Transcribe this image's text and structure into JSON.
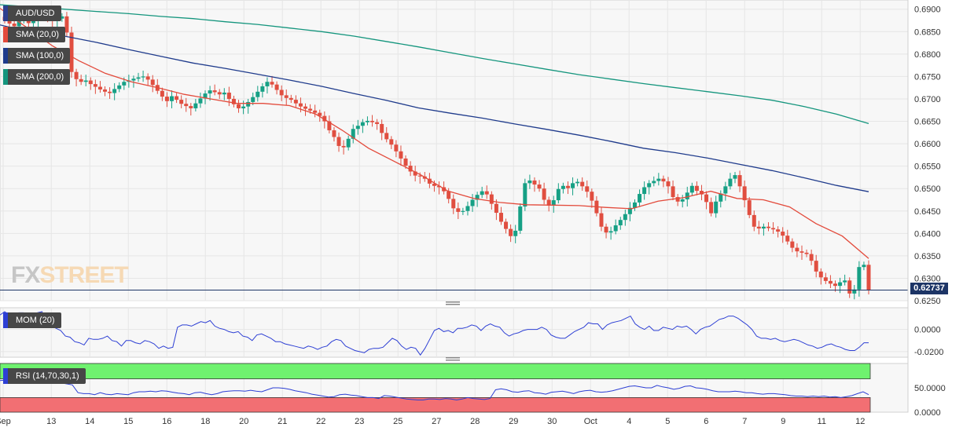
{
  "chart_data": [
    {
      "type": "candlestick",
      "title": "AUD/USD",
      "y_ticks": [
        "0.6900",
        "0.6850",
        "0.6800",
        "0.6750",
        "0.6700",
        "0.6650",
        "0.6600",
        "0.6550",
        "0.6500",
        "0.6450",
        "0.6400",
        "0.6350",
        "0.6300",
        "0.6250"
      ],
      "ylim": [
        0.625,
        0.691
      ],
      "last_price": "0.62737",
      "x_ticks": [
        "Sep",
        "13",
        "14",
        "15",
        "16",
        "18",
        "20",
        "21",
        "22",
        "23",
        "25",
        "27",
        "28",
        "29",
        "30",
        "Oct",
        "4",
        "5",
        "6",
        "7",
        "9",
        "11",
        "12"
      ],
      "x_tick_days": [
        0,
        2.5,
        4.5,
        6.5,
        8.5,
        10.5,
        12.5,
        14.5,
        16.5,
        18.5,
        20.5,
        22.5,
        24.5,
        26.5,
        28.5,
        30.5,
        32.5,
        34.5,
        36.5,
        38.5,
        40.5,
        42.5,
        44.5
      ],
      "candles_close": [
        0.6875,
        0.6868,
        0.6862,
        0.6875,
        0.688,
        0.6869,
        0.6877,
        0.6884,
        0.689,
        0.6881,
        0.6874,
        0.6879,
        0.6884,
        0.6848,
        0.676,
        0.6744,
        0.6738,
        0.6741,
        0.6733,
        0.6727,
        0.6721,
        0.6716,
        0.6713,
        0.6722,
        0.673,
        0.6738,
        0.6741,
        0.6745,
        0.6748,
        0.675,
        0.6743,
        0.6731,
        0.6718,
        0.6705,
        0.6695,
        0.6706,
        0.6698,
        0.6689,
        0.6684,
        0.6679,
        0.669,
        0.6701,
        0.6712,
        0.6719,
        0.6715,
        0.671,
        0.6714,
        0.67,
        0.6688,
        0.6679,
        0.6683,
        0.6693,
        0.6704,
        0.6716,
        0.6728,
        0.6738,
        0.6732,
        0.672,
        0.6708,
        0.6702,
        0.6698,
        0.669,
        0.6683,
        0.6678,
        0.6674,
        0.6669,
        0.6662,
        0.665,
        0.663,
        0.6615,
        0.6595,
        0.6592,
        0.6611,
        0.6633,
        0.664,
        0.6648,
        0.6651,
        0.6648,
        0.6644,
        0.6624,
        0.661,
        0.6598,
        0.6583,
        0.6567,
        0.6551,
        0.6538,
        0.6529,
        0.6527,
        0.6522,
        0.6511,
        0.6506,
        0.6503,
        0.6494,
        0.6477,
        0.6456,
        0.6448,
        0.645,
        0.6461,
        0.6475,
        0.6486,
        0.6494,
        0.6487,
        0.6466,
        0.6446,
        0.6426,
        0.641,
        0.6394,
        0.6406,
        0.646,
        0.6512,
        0.6518,
        0.6509,
        0.65,
        0.6475,
        0.6462,
        0.6474,
        0.6499,
        0.6506,
        0.6501,
        0.6512,
        0.6515,
        0.6505,
        0.6493,
        0.6473,
        0.6445,
        0.6415,
        0.6402,
        0.6405,
        0.6418,
        0.643,
        0.6443,
        0.6457,
        0.6469,
        0.6488,
        0.6503,
        0.6512,
        0.6517,
        0.6522,
        0.6516,
        0.6505,
        0.6481,
        0.6471,
        0.6476,
        0.6491,
        0.6506,
        0.6495,
        0.6487,
        0.647,
        0.6445,
        0.6471,
        0.6489,
        0.6505,
        0.6522,
        0.653,
        0.6505,
        0.6474,
        0.6441,
        0.6415,
        0.6411,
        0.6415,
        0.6412,
        0.6409,
        0.6404,
        0.6395,
        0.6382,
        0.6368,
        0.636,
        0.6357,
        0.6354,
        0.6339,
        0.6315,
        0.6302,
        0.6294,
        0.6288,
        0.6283,
        0.6291,
        0.6295,
        0.6266,
        0.6275,
        0.6325,
        0.633,
        0.6274
      ],
      "series": [
        {
          "name": "SMA (20,0)",
          "color": "#e34a3b",
          "values": [
            0.6902,
            0.686,
            0.6818,
            0.6785,
            0.6757,
            0.6738,
            0.6725,
            0.671,
            0.67,
            0.669,
            0.669,
            0.6685,
            0.6666,
            0.663,
            0.659,
            0.656,
            0.653,
            0.6495,
            0.6478,
            0.6469,
            0.6464,
            0.6463,
            0.6462,
            0.6458,
            0.6455,
            0.6472,
            0.648,
            0.6494,
            0.6478,
            0.6475,
            0.6459,
            0.6422,
            0.6394,
            0.6344
          ]
        },
        {
          "name": "SMA (100,0)",
          "color": "#1f3b8c",
          "values": [
            0.6865,
            0.6848,
            0.684,
            0.6826,
            0.681,
            0.6795,
            0.678,
            0.6768,
            0.6755,
            0.6742,
            0.6728,
            0.6712,
            0.6697,
            0.668,
            0.6668,
            0.6657,
            0.6644,
            0.6632,
            0.6619,
            0.6605,
            0.659,
            0.658,
            0.6568,
            0.6554,
            0.654,
            0.6524,
            0.6507,
            0.6493
          ]
        },
        {
          "name": "SMA (200,0)",
          "color": "#14957d",
          "values": [
            0.691,
            0.6905,
            0.69,
            0.6895,
            0.689,
            0.6884,
            0.6879,
            0.6872,
            0.6866,
            0.6858,
            0.685,
            0.684,
            0.6828,
            0.6816,
            0.6803,
            0.679,
            0.6778,
            0.6766,
            0.6754,
            0.6744,
            0.6734,
            0.6725,
            0.6716,
            0.6707,
            0.6697,
            0.6683,
            0.6666,
            0.6645
          ]
        }
      ]
    },
    {
      "type": "line",
      "title": "MOM (20)",
      "y_ticks": [
        "0.0000",
        "-0.0200"
      ],
      "ylim": [
        -0.025,
        0.0195
      ],
      "series": [
        {
          "name": "MOM (20)",
          "color": "#2d3fd4",
          "values": [
            0.013,
            0.016,
            0.013,
            0.012,
            0.015,
            0.015,
            0.014,
            0.014,
            0.015,
            0.016,
            0.004,
            0.003,
            0.001,
            -0.001,
            -0.006,
            -0.007,
            -0.011,
            -0.012,
            -0.014,
            -0.008,
            -0.009,
            -0.009,
            -0.008,
            -0.006,
            -0.01,
            -0.011,
            -0.015,
            -0.01,
            -0.01,
            -0.012,
            -0.013,
            -0.01,
            -0.011,
            -0.013,
            -0.017,
            -0.015,
            -0.017,
            -0.016,
            0.002,
            0.004,
            0.004,
            0.003,
            0.005,
            0.007,
            0.006,
            0.008,
            0.003,
            0.001,
            0.0,
            -0.002,
            -0.003,
            -0.002,
            -0.006,
            -0.007,
            -0.01,
            -0.005,
            -0.004,
            -0.006,
            -0.008,
            -0.011,
            -0.011,
            -0.013,
            -0.014,
            -0.015,
            -0.016,
            -0.017,
            -0.015,
            -0.016,
            -0.018,
            -0.016,
            -0.015,
            -0.011,
            -0.009,
            -0.01,
            -0.015,
            -0.017,
            -0.019,
            -0.02,
            -0.021,
            -0.018,
            -0.017,
            -0.017,
            -0.016,
            -0.012,
            -0.008,
            -0.01,
            -0.015,
            -0.018,
            -0.016,
            -0.017,
            -0.023,
            -0.017,
            -0.009,
            -0.001,
            0.001,
            -0.002,
            -0.001,
            -0.003,
            0.001,
            0.001,
            0.002,
            0.004,
            0.003,
            -0.001,
            0.003,
            0.005,
            0.003,
            0.002,
            -0.003,
            -0.006,
            -0.004,
            -0.003,
            -0.001,
            0.0,
            0.0,
            0.0,
            0.002,
            0.0,
            -0.005,
            -0.007,
            -0.008,
            -0.008,
            -0.005,
            -0.002,
            0.0,
            0.002,
            0.006,
            0.005,
            0.005,
            0.0,
            0.004,
            0.006,
            0.007,
            0.008,
            0.01,
            0.012,
            0.005,
            0.002,
            0.0,
            0.003,
            -0.001,
            -0.001,
            0.002,
            0.001,
            0.0,
            0.003,
            0.002,
            0.003,
            0.0,
            -0.004,
            0.0,
            0.002,
            0.003,
            0.006,
            0.009,
            0.01,
            0.012,
            0.012,
            0.01,
            0.007,
            0.004,
            0.0,
            -0.006,
            -0.008,
            -0.008,
            -0.009,
            -0.008,
            -0.01,
            -0.011,
            -0.01,
            -0.009,
            -0.01,
            -0.012,
            -0.014,
            -0.015,
            -0.017,
            -0.016,
            -0.014,
            -0.013,
            -0.015,
            -0.016,
            -0.018,
            -0.019,
            -0.019,
            -0.016,
            -0.012,
            -0.012
          ]
        }
      ]
    },
    {
      "type": "line",
      "title": "RSI (14,70,30,1)",
      "y_ticks": [
        "50.0000",
        "0.0000"
      ],
      "ylim": [
        0,
        100
      ],
      "overbought": 70,
      "oversold": 30,
      "zone_colors": {
        "upper": "#6ff26f",
        "lower": "#f26f73"
      },
      "series": [
        {
          "name": "RSI (14,70,30,1)",
          "color": "#2d3fd4",
          "values": [
            65,
            66,
            64,
            63,
            65,
            66,
            64,
            62,
            66,
            67,
            64,
            60,
            58,
            56,
            40,
            38,
            38,
            36,
            40,
            37,
            36,
            38,
            37,
            36,
            40,
            42,
            42,
            43,
            42,
            44,
            43,
            41,
            39,
            38,
            36,
            40,
            41,
            38,
            36,
            38,
            42,
            43,
            44,
            44,
            43,
            45,
            43,
            42,
            46,
            50,
            50,
            49,
            47,
            44,
            42,
            40,
            37,
            35,
            33,
            31,
            32,
            36,
            37,
            35,
            34,
            32,
            30,
            30,
            28,
            34,
            33,
            31,
            29,
            27,
            26,
            25,
            25,
            27,
            27,
            26,
            28,
            27,
            25,
            27,
            30,
            28,
            27,
            26,
            28,
            46,
            48,
            46,
            42,
            41,
            43,
            44,
            40,
            39,
            37,
            41,
            42,
            43,
            41,
            38,
            42,
            44,
            45,
            42,
            41,
            42,
            44,
            47,
            50,
            53,
            54,
            52,
            50,
            50,
            55,
            52,
            50,
            47,
            49,
            53,
            54,
            50,
            49,
            47,
            44,
            42,
            42,
            42,
            43,
            42,
            40,
            40,
            38,
            37,
            38,
            38,
            37,
            36,
            34,
            33,
            33,
            32,
            33,
            32,
            33,
            31,
            32,
            30,
            32,
            34,
            38,
            42,
            36
          ]
        }
      ]
    }
  ],
  "legend": {
    "pair": "AUD/USD",
    "sma20": "SMA (20,0)",
    "sma100": "SMA (100,0)",
    "sma200": "SMA (200,0)",
    "mom": "MOM (20)",
    "rsi": "RSI (14,70,30,1)"
  },
  "watermark": {
    "fx": "FX",
    "street": "STREET"
  },
  "colors": {
    "bull": "#16a085",
    "bear": "#e04e40",
    "grid": "#e6e6e6",
    "price_line": "#1d3566",
    "indicator": "#2d3fd4",
    "panel_bg": "#f7f7f7"
  }
}
